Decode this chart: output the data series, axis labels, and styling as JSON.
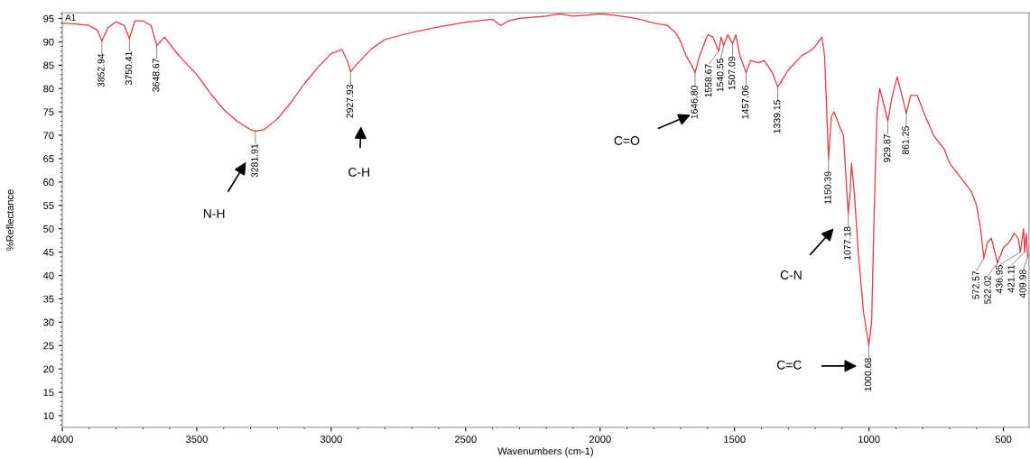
{
  "chart_data": {
    "type": "line",
    "xlabel": "Wavenumbers (cm-1)",
    "ylabel": "%Reflectance",
    "xlim": [
      4000,
      405
    ],
    "ylim": [
      7.5,
      96.2
    ],
    "xticks": [
      4000,
      3500,
      3000,
      2500,
      2000,
      1500,
      1000,
      500
    ],
    "yticks": [
      10,
      15,
      20,
      25,
      30,
      35,
      40,
      45,
      50,
      55,
      60,
      65,
      70,
      75,
      80,
      85,
      90,
      95
    ],
    "grid": false,
    "legend": false,
    "marker": "none",
    "line_style": "solid",
    "series": [
      {
        "color": "#e8353a",
        "x": [
          4000,
          3950,
          3900,
          3870,
          3852.94,
          3830,
          3800,
          3770,
          3750.41,
          3730,
          3700,
          3670,
          3648.67,
          3620,
          3580,
          3550,
          3500,
          3450,
          3400,
          3350,
          3300,
          3281.91,
          3250,
          3200,
          3150,
          3100,
          3050,
          3000,
          2960,
          2940,
          2927.93,
          2900,
          2850,
          2800,
          2700,
          2600,
          2500,
          2400,
          2370,
          2340,
          2300,
          2200,
          2150,
          2100,
          2050,
          2000,
          1950,
          1900,
          1850,
          1800,
          1750,
          1720,
          1700,
          1680,
          1660,
          1646.8,
          1630,
          1600,
          1580,
          1558.67,
          1550,
          1540.55,
          1525,
          1507.09,
          1495,
          1480,
          1457.06,
          1440,
          1410,
          1390,
          1360,
          1339.15,
          1300,
          1250,
          1220,
          1200,
          1175,
          1165,
          1150.39,
          1140,
          1130,
          1110,
          1095,
          1077.18,
          1070,
          1065,
          1055,
          1040,
          1020,
          1000.68,
          990,
          980,
          970,
          960,
          940,
          929.87,
          915,
          895,
          875,
          861.25,
          845,
          820,
          790,
          760,
          740,
          720,
          700,
          660,
          620,
          600,
          585,
          572.57,
          560,
          545,
          522.02,
          500,
          480,
          460,
          445,
          436.95,
          425,
          421.11,
          415,
          409.98
        ],
        "values": [
          94,
          93.8,
          93.5,
          92.5,
          90.2,
          93,
          94.3,
          93.5,
          90.7,
          94.5,
          94.5,
          93.5,
          89.2,
          91,
          88,
          86,
          83,
          79,
          75.5,
          73,
          71.2,
          70.9,
          71.2,
          73.5,
          77,
          81,
          84.5,
          87.5,
          88.3,
          86,
          83.6,
          85.5,
          88.5,
          90.5,
          92,
          93.2,
          94.2,
          94.8,
          93.5,
          94.5,
          95,
          95.5,
          96,
          95.5,
          95.7,
          96,
          95.7,
          95.3,
          94.8,
          94,
          93.5,
          92,
          90,
          87,
          85,
          83.4,
          87,
          91.5,
          91,
          88,
          91,
          89.2,
          91.5,
          89.6,
          91.5,
          87,
          83.4,
          86,
          85.5,
          86,
          83.5,
          80.3,
          84,
          87,
          88,
          89,
          91,
          87,
          65,
          74,
          75,
          72,
          70,
          53.2,
          58,
          64,
          58,
          45,
          32,
          25.1,
          30,
          55,
          75,
          80,
          75.5,
          73,
          78,
          82.5,
          78,
          74.7,
          78.5,
          78.5,
          74,
          70,
          68.5,
          67,
          64,
          61,
          58,
          55,
          50,
          43.7,
          47,
          48,
          42.7,
          46,
          47,
          49,
          48,
          45,
          50,
          45,
          49,
          44
        ]
      }
    ],
    "annotations": [
      "A1",
      {
        "text": "3852.94",
        "x": 3852.94,
        "y": 90.2
      },
      {
        "text": "3750.41",
        "x": 3750.41,
        "y": 90.7
      },
      {
        "text": "3648.67",
        "x": 3648.67,
        "y": 89.2
      },
      {
        "text": "3281.91",
        "x": 3281.91,
        "y": 70.9
      },
      {
        "text": "2927.93",
        "x": 2927.93,
        "y": 83.6
      },
      {
        "text": "1646.80",
        "x": 1646.8,
        "y": 83.4
      },
      {
        "text": "1558.67",
        "x": 1558.67,
        "y": 88
      },
      {
        "text": "1540.55",
        "x": 1540.55,
        "y": 89.2
      },
      {
        "text": "1507.09",
        "x": 1507.09,
        "y": 89.6
      },
      {
        "text": "1457.06",
        "x": 1457.06,
        "y": 83.4
      },
      {
        "text": "1339.15",
        "x": 1339.15,
        "y": 80.3
      },
      {
        "text": "1150.39",
        "x": 1150.39,
        "y": 65
      },
      {
        "text": "1077.18",
        "x": 1077.18,
        "y": 53.2
      },
      {
        "text": "1000.68",
        "x": 1000.68,
        "y": 25.1
      },
      {
        "text": "929.87",
        "x": 929.87,
        "y": 73
      },
      {
        "text": "861.25",
        "x": 861.25,
        "y": 74.7
      },
      {
        "text": "572.57",
        "x": 572.57,
        "y": 43.7
      },
      {
        "text": "522.02",
        "x": 522.02,
        "y": 42.7
      },
      {
        "text": "436.95",
        "x": 436.95,
        "y": 45
      },
      {
        "text": "421.11",
        "x": 421.11,
        "y": 45
      },
      {
        "text": "409.98",
        "x": 409.98,
        "y": 44
      },
      "N-H",
      "C-H",
      "C=O",
      "C-N",
      "C=C"
    ]
  }
}
